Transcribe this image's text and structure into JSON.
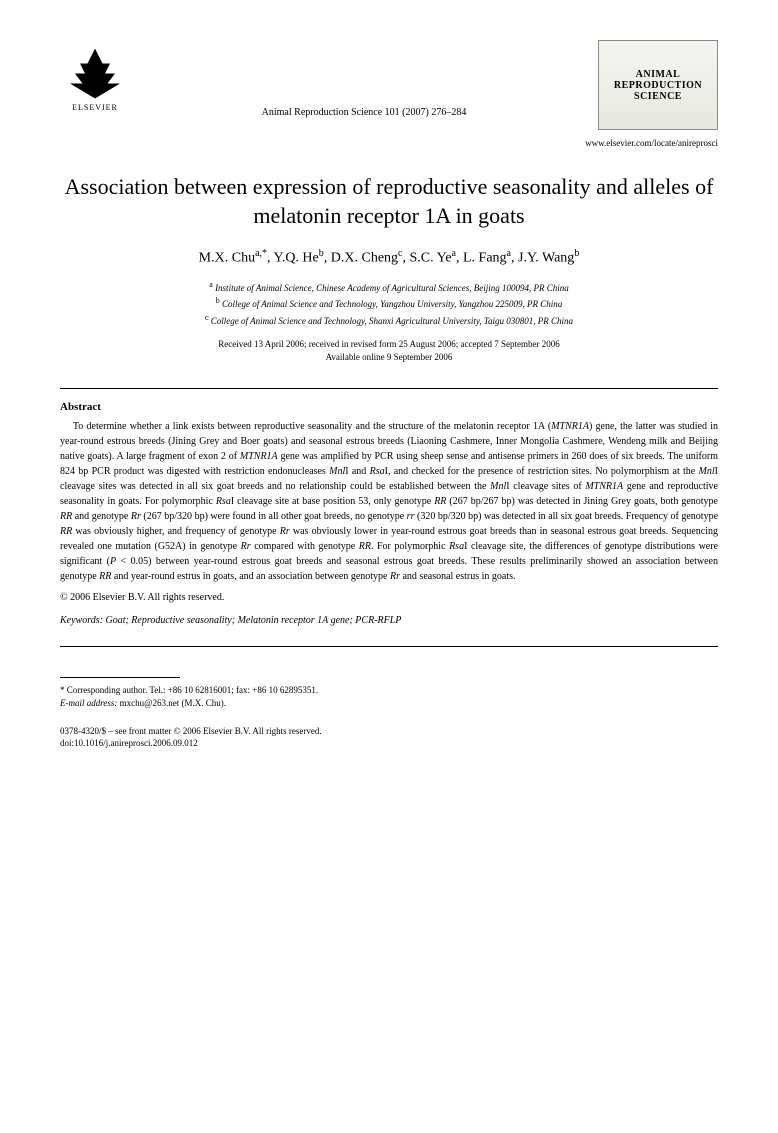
{
  "publisher": {
    "logo_text": "ELSEVIER",
    "journal_box_line1": "ANIMAL",
    "journal_box_line2": "REPRODUCTION",
    "journal_box_line3": "SCIENCE"
  },
  "journal_ref": "Animal Reproduction Science 101 (2007) 276–284",
  "journal_url": "www.elsevier.com/locate/anireprosci",
  "title": "Association between expression of reproductive seasonality and alleles of melatonin receptor 1A in goats",
  "authors_html": "M.X. Chu<sup>a,*</sup>, Y.Q. He<sup>b</sup>, D.X. Cheng<sup>c</sup>, S.C. Ye<sup>a</sup>, L. Fang<sup>a</sup>, J.Y. Wang<sup>b</sup>",
  "affiliations": [
    "Institute of Animal Science, Chinese Academy of Agricultural Sciences, Beijing 100094, PR China",
    "College of Animal Science and Technology, Yangzhou University, Yangzhou 225009, PR China",
    "College of Animal Science and Technology, Shanxi Agricultural University, Taigu 030801, PR China"
  ],
  "aff_super": [
    "a",
    "b",
    "c"
  ],
  "dates_line1": "Received 13 April 2006; received in revised form 25 August 2006; accepted 7 September 2006",
  "dates_line2": "Available online 9 September 2006",
  "abstract_heading": "Abstract",
  "abstract_html": "To determine whether a link exists between reproductive seasonality and the structure of the melatonin receptor 1A (<i>MTNR1A</i>) gene, the latter was studied in year-round estrous breeds (Jining Grey and Boer goats) and seasonal estrous breeds (Liaoning Cashmere, Inner Mongolia Cashmere, Wendeng milk and Beijing native goats). A large fragment of exon 2 of <i>MTNR1A</i> gene was amplified by PCR using sheep sense and antisense primers in 260 does of six breeds. The uniform 824 bp PCR product was digested with restriction endonucleases <i>Mnl</i>I and <i>Rsa</i>I, and checked for the presence of restriction sites. No polymorphism at the <i>Mnl</i>I cleavage sites was detected in all six goat breeds and no relationship could be established between the <i>Mnl</i>I cleavage sites of <i>MTNR1A</i> gene and reproductive seasonality in goats. For polymorphic <i>Rsa</i>I cleavage site at base position 53, only genotype <i>RR</i> (267 bp/267 bp) was detected in Jining Grey goats, both genotype <i>RR</i> and genotype <i>Rr</i> (267 bp/320 bp) were found in all other goat breeds, no genotype <i>rr</i> (320 bp/320 bp) was detected in all six goat breeds. Frequency of genotype <i>RR</i> was obviously higher, and frequency of genotype <i>Rr</i> was obviously lower in year-round estrous goat breeds than in seasonal estrous goat breeds. Sequencing revealed one mutation (G52A) in genotype <i>Rr</i> compared with genotype <i>RR</i>. For polymorphic <i>Rsa</i>I cleavage site, the differences of genotype distributions were significant (<i>P</i> < 0.05) between year-round estrous goat breeds and seasonal estrous goat breeds. These results preliminarily showed an association between genotype <i>RR</i> and year-round estrus in goats, and an association between genotype <i>Rr</i> and seasonal estrus in goats.",
  "copyright": "© 2006 Elsevier B.V. All rights reserved.",
  "keywords_label": "Keywords:",
  "keywords_text": " Goat; Reproductive seasonality; Melatonin receptor 1A gene; PCR-RFLP",
  "footnote_corr": "* Corresponding author. Tel.: +86 10 62816001; fax: +86 10 62895351.",
  "footnote_email_label": "E-mail address:",
  "footnote_email": " mxchu@263.net (M.X. Chu).",
  "footer_line1": "0378-4320/$ – see front matter © 2006 Elsevier B.V. All rights reserved.",
  "footer_line2": "doi:10.1016/j.anireprosci.2006.09.012"
}
